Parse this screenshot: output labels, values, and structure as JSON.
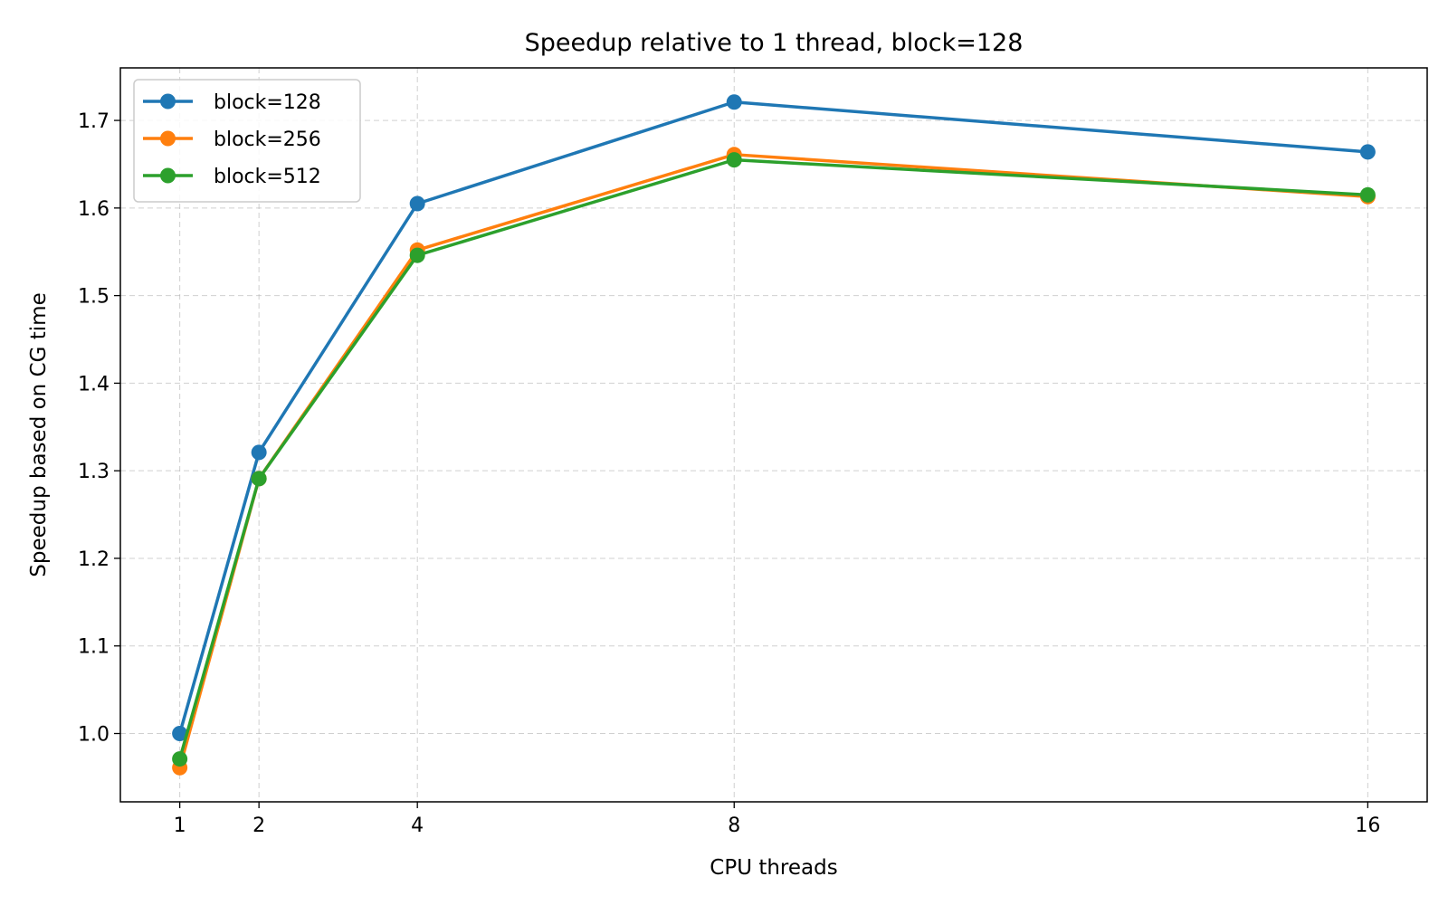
{
  "chart_data": {
    "type": "line",
    "title": "Speedup relative to 1 thread, block=128",
    "xlabel": "CPU threads",
    "ylabel": "Speedup based on CG time",
    "x": [
      1,
      2,
      4,
      8,
      16
    ],
    "xticks": [
      1,
      2,
      4,
      8,
      16
    ],
    "xtick_labels": [
      "1",
      "2",
      "4",
      "8",
      "16"
    ],
    "xlim": [
      0.25,
      16.75
    ],
    "ylim": [
      0.922,
      1.76
    ],
    "yticks": [
      1.0,
      1.1,
      1.2,
      1.3,
      1.4,
      1.5,
      1.6,
      1.7
    ],
    "ytick_labels": [
      "1.0",
      "1.1",
      "1.2",
      "1.3",
      "1.4",
      "1.5",
      "1.6",
      "1.7"
    ],
    "grid": true,
    "grid_style": "dashed",
    "legend_position": "upper-left",
    "series": [
      {
        "name": "block=128",
        "color": "#1f77b4",
        "values": [
          1.0,
          1.321,
          1.605,
          1.721,
          1.664
        ]
      },
      {
        "name": "block=256",
        "color": "#ff7f0e",
        "values": [
          0.961,
          1.291,
          1.552,
          1.661,
          1.613
        ]
      },
      {
        "name": "block=512",
        "color": "#2ca02c",
        "values": [
          0.971,
          1.291,
          1.546,
          1.655,
          1.615
        ]
      }
    ]
  }
}
